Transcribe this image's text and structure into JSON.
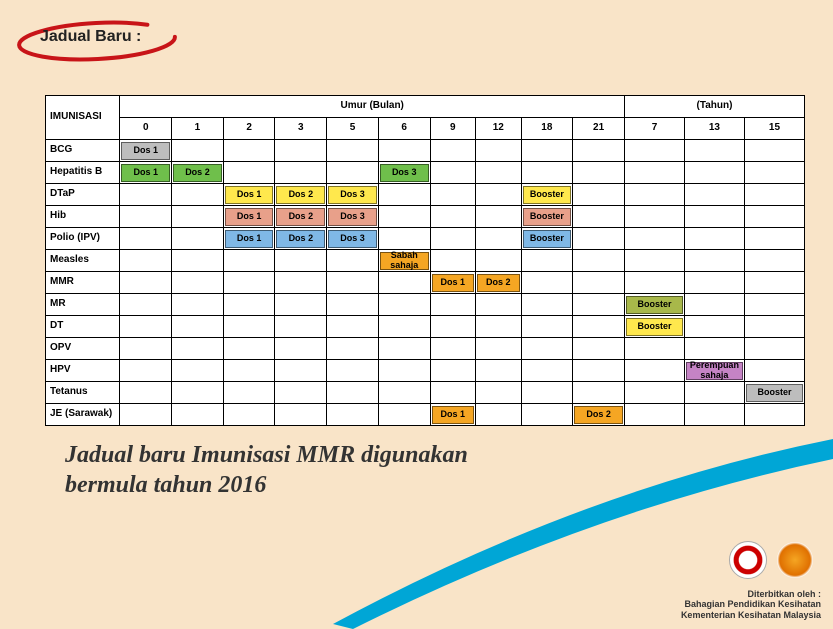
{
  "header": {
    "title": "Jadual Baru :"
  },
  "table": {
    "rowHeader": "IMUNISASI",
    "ageGroupMonths": "Umur (Bulan)",
    "ageGroupYears": "(Tahun)",
    "monthCols": [
      "0",
      "1",
      "2",
      "3",
      "5",
      "6",
      "9",
      "12",
      "18",
      "21"
    ],
    "yearCols": [
      "7",
      "13",
      "15"
    ],
    "colors": {
      "grey": "#bdbdbd",
      "green": "#6fbf4b",
      "yellow": "#ffe84d",
      "salmon": "#e8a08a",
      "blue": "#7fb8e6",
      "orange": "#f5a623",
      "olive": "#a8b84a",
      "purple": "#c583c5"
    },
    "rows": [
      {
        "label": "BCG",
        "cells": {
          "0": {
            "t": "Dos 1",
            "c": "grey"
          }
        }
      },
      {
        "label": "Hepatitis B",
        "cells": {
          "0": {
            "t": "Dos 1",
            "c": "green"
          },
          "1": {
            "t": "Dos 2",
            "c": "green"
          },
          "6": {
            "t": "Dos 3",
            "c": "green"
          }
        }
      },
      {
        "label": "DTaP",
        "cells": {
          "2": {
            "t": "Dos 1",
            "c": "yellow"
          },
          "3": {
            "t": "Dos 2",
            "c": "yellow"
          },
          "5": {
            "t": "Dos 3",
            "c": "yellow"
          },
          "18": {
            "t": "Booster",
            "c": "yellow"
          }
        }
      },
      {
        "label": "Hib",
        "cells": {
          "2": {
            "t": "Dos 1",
            "c": "salmon"
          },
          "3": {
            "t": "Dos 2",
            "c": "salmon"
          },
          "5": {
            "t": "Dos 3",
            "c": "salmon"
          },
          "18": {
            "t": "Booster",
            "c": "salmon"
          }
        }
      },
      {
        "label": "Polio (IPV)",
        "cells": {
          "2": {
            "t": "Dos 1",
            "c": "blue"
          },
          "3": {
            "t": "Dos 2",
            "c": "blue"
          },
          "5": {
            "t": "Dos 3",
            "c": "blue"
          },
          "18": {
            "t": "Booster",
            "c": "blue"
          }
        }
      },
      {
        "label": "Measles",
        "cells": {
          "6": {
            "t": "Sabah sahaja",
            "c": "orange"
          }
        }
      },
      {
        "label": "MMR",
        "cells": {
          "9": {
            "t": "Dos 1",
            "c": "orange"
          },
          "12": {
            "t": "Dos 2",
            "c": "orange"
          }
        }
      },
      {
        "label": "MR",
        "cells": {
          "y7": {
            "t": "Booster",
            "c": "olive"
          }
        }
      },
      {
        "label": "DT",
        "cells": {
          "y7": {
            "t": "Booster",
            "c": "yellow"
          }
        }
      },
      {
        "label": "OPV",
        "cells": {}
      },
      {
        "label": "HPV",
        "cells": {
          "y13": {
            "t": "Perempuan sahaja",
            "c": "purple"
          }
        }
      },
      {
        "label": "Tetanus",
        "cells": {
          "y15": {
            "t": "Booster",
            "c": "grey"
          }
        }
      },
      {
        "label": "JE (Sarawak)",
        "cells": {
          "9": {
            "t": "Dos 1",
            "c": "orange"
          },
          "21": {
            "t": "Dos 2",
            "c": "orange"
          }
        }
      }
    ]
  },
  "caption": {
    "line1": "Jadual baru Imunisasi MMR digunakan",
    "line2": "bermula tahun 2016"
  },
  "footer": {
    "publishedBy": "Diterbitkan oleh :",
    "org1": "Bahagian Pendidikan Kesihatan",
    "org2": "Kementerian Kesihatan Malaysia"
  },
  "style": {
    "swooshColor": "#00a6d6",
    "ovalColor": "#c81418"
  }
}
